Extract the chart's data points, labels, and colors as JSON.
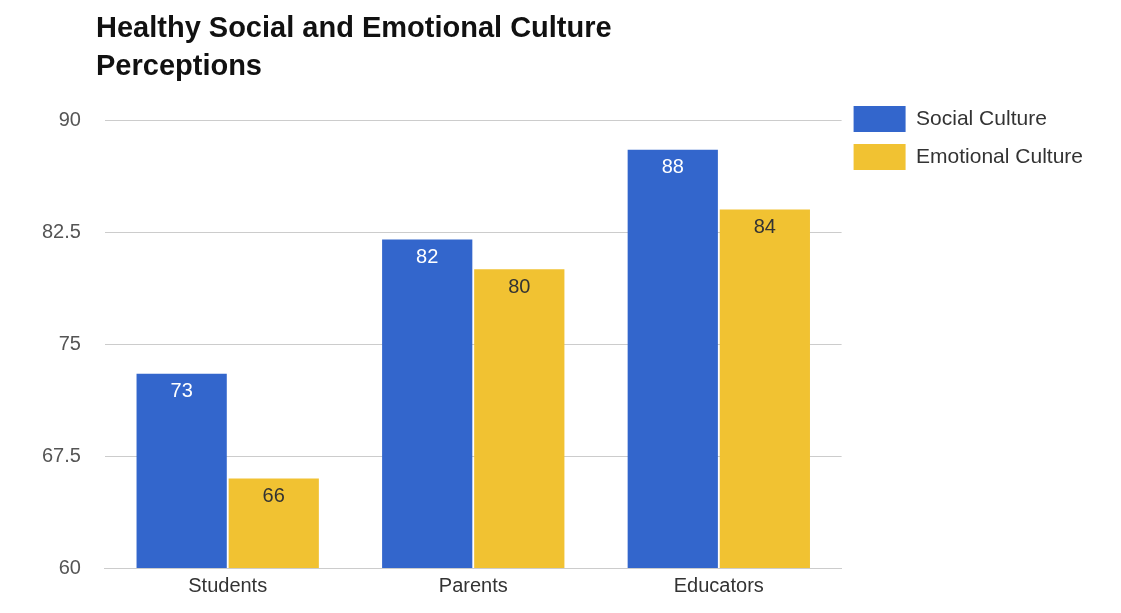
{
  "chart_data": {
    "type": "bar",
    "title": "Healthy Social and Emotional Culture Perceptions",
    "categories": [
      "Students",
      "Parents",
      "Educators"
    ],
    "series": [
      {
        "name": "Social Culture",
        "color": "#3366cc",
        "values": [
          73,
          82,
          88
        ]
      },
      {
        "name": "Emotional Culture",
        "color": "#f1c232",
        "values": [
          66,
          80,
          84
        ]
      }
    ],
    "ylim": [
      60,
      90
    ],
    "yticks": [
      60,
      67.5,
      75,
      82.5,
      90
    ],
    "grid": "y",
    "legend": "top right",
    "data_labels": true
  }
}
